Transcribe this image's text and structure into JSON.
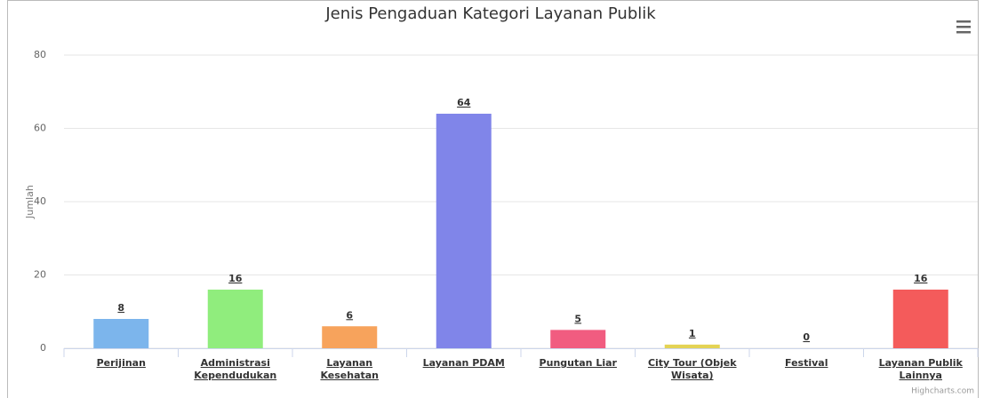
{
  "chart_data": {
    "type": "bar",
    "title": "Jenis Pengaduan Kategori Layanan Publik",
    "y_axis_label": "Jumlah",
    "categories": [
      "Perijinan",
      "Administrasi Kependudukan",
      "Layanan Kesehatan",
      "Layanan PDAM",
      "Pungutan Liar",
      "City Tour (Objek Wisata)",
      "Festival",
      "Layanan Publik Lainnya"
    ],
    "values": [
      8,
      16,
      6,
      64,
      5,
      1,
      0,
      16
    ],
    "colors": [
      "#7cb5ec",
      "#90ed7d",
      "#f7a35c",
      "#8085e9",
      "#f15c80",
      "#e4d354",
      "#2b908f",
      "#f45b5b"
    ],
    "ylim": [
      0,
      80
    ],
    "yticks": [
      0,
      20,
      40,
      60,
      80
    ],
    "grid": true,
    "credits": "Highcharts.com"
  }
}
